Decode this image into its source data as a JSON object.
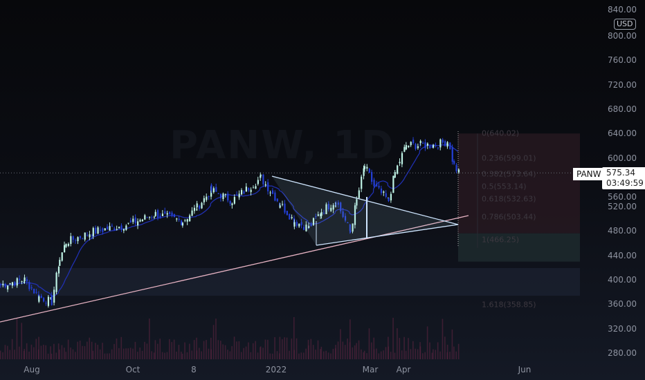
{
  "symbol": "PANW",
  "watermark": "PANW, 1D",
  "currency": "USD",
  "last_price": "575.34",
  "countdown": "03:49:59",
  "price_axis": {
    "top_clipped": "840.00",
    "ticks": [
      "800.00",
      "760.00",
      "720.00",
      "680.00",
      "640.00",
      "600.00",
      "560.00",
      "520.00",
      "480.00",
      "440.00",
      "400.00",
      "360.00",
      "320.00",
      "280.00"
    ]
  },
  "date_axis": [
    "Aug",
    "Oct",
    "8",
    "2022",
    "Mar",
    "Apr",
    "Jun"
  ],
  "fib_levels": [
    {
      "label": "0(640.02)",
      "value": 640.02
    },
    {
      "label": "0.236(599.01)",
      "value": 599.01
    },
    {
      "label": "0.382(573.64)",
      "value": 573.64
    },
    {
      "label": "0.5(553.14)",
      "value": 553.14
    },
    {
      "label": "0.618(532.63)",
      "value": 532.63
    },
    {
      "label": "0.786(503.44)",
      "value": 503.44
    },
    {
      "label": "1(466.25)",
      "value": 466.25
    },
    {
      "label": "1.618(358.85)",
      "value": 358.85
    }
  ],
  "colors": {
    "up": "#bff3e6",
    "down": "#2440d8",
    "ma_fast": "#2030b0",
    "ma_slow": "#e8b4c4",
    "triangle": "#cfe6ff",
    "volume": "#5a2440"
  },
  "chart_data": {
    "type": "candlestick",
    "series_points": [
      [
        "2021-07-12",
        392
      ],
      [
        "2021-07-27",
        400
      ],
      [
        "2021-08-05",
        372
      ],
      [
        "2021-08-13",
        364
      ],
      [
        "2021-08-18",
        434
      ],
      [
        "2021-08-22",
        462
      ],
      [
        "2021-09-08",
        479
      ],
      [
        "2021-09-30",
        491
      ],
      [
        "2021-10-17",
        508
      ],
      [
        "2021-11-03",
        496
      ],
      [
        "2021-11-12",
        519
      ],
      [
        "2021-11-21",
        547
      ],
      [
        "2021-12-04",
        530
      ],
      [
        "2021-12-22",
        567
      ],
      [
        "2022-01-03",
        525
      ],
      [
        "2022-01-12",
        496
      ],
      [
        "2022-01-21",
        485
      ],
      [
        "2022-01-29",
        513
      ],
      [
        "2022-02-07",
        530
      ],
      [
        "2022-02-16",
        479
      ],
      [
        "2022-02-20",
        530
      ],
      [
        "2022-02-25",
        587
      ],
      [
        "2022-03-03",
        553
      ],
      [
        "2022-03-12",
        530
      ],
      [
        "2022-03-16",
        576
      ],
      [
        "2022-03-23",
        621
      ],
      [
        "2022-04-01",
        621
      ],
      [
        "2022-04-09",
        621
      ],
      [
        "2022-04-18",
        627
      ],
      [
        "2022-04-22",
        587
      ],
      [
        "2022-04-25",
        575
      ]
    ],
    "ylim": [
      260,
      850
    ]
  }
}
